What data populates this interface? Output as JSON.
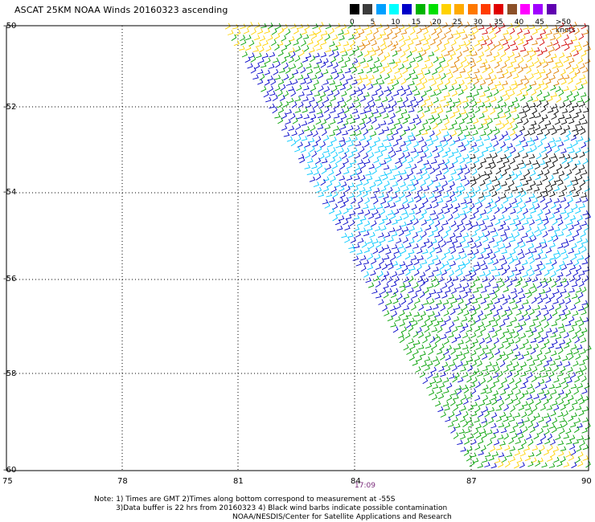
{
  "title": "ASCAT 25KM NOAA Winds 20160323 ascending",
  "legend": {
    "colors": [
      "#000000",
      "#3c3c3c",
      "#00a0ff",
      "#00ffff",
      "#0000c8",
      "#00b400",
      "#00e000",
      "#ffd200",
      "#ffaa00",
      "#ff7800",
      "#ff3c00",
      "#e00000",
      "#8c5028",
      "#ff00ff",
      "#a000ff",
      "#6000b0"
    ],
    "labels": [
      "0",
      "5",
      "10",
      "15",
      "20",
      "25",
      "30",
      "35",
      "40",
      "45",
      ">50 knots"
    ]
  },
  "axes": {
    "y_labels": [
      "-50",
      "-52",
      "-54",
      "-56",
      "-58",
      "-60"
    ],
    "x_labels": [
      "75",
      "78",
      "81",
      "84",
      "87",
      "90"
    ]
  },
  "time_marker": "17:09",
  "notes": [
    "Note: 1) Times are GMT 2)Times along bottom correspond to measurement at -55S",
    "3)Data buffer is 22 hrs from 20160323 4) Black wind barbs indicate possible contamination",
    "NOAA/NESDIS/Center for Satellite Applications and Research"
  ],
  "swath_colors": {
    "yellow": "#ffd200",
    "orange": "#e08000",
    "red": "#d00000",
    "green": "#00a000",
    "blue": "#0000c8",
    "cyan": "#00c8ff",
    "black": "#000000"
  }
}
